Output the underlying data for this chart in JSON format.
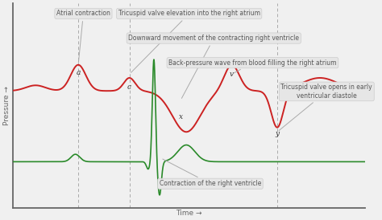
{
  "background_color": "#f0f0f0",
  "plot_bg_color": "#f0f0f0",
  "red_line_color": "#cc2222",
  "green_line_color": "#2a8a2a",
  "axis_color": "#666666",
  "dashed_line_color": "#aaaaaa",
  "annotation_box_color": "#e6e6e6",
  "annotation_box_edge": "#cccccc",
  "annotation_text_color": "#555555",
  "arrow_color": "#aaaaaa",
  "ylabel": "Pressure →",
  "xlabel": "Time →",
  "wave_labels": [
    {
      "text": "a",
      "xd": 1.45,
      "yd": 0.68
    },
    {
      "text": "c",
      "xd": 2.35,
      "yd": 0.6
    },
    {
      "text": "x",
      "xd": 3.25,
      "yd": 0.44
    },
    {
      "text": "v",
      "xd": 4.15,
      "yd": 0.67
    },
    {
      "text": "y",
      "xd": 4.95,
      "yd": 0.35
    }
  ],
  "vlines_xd": [
    1.45,
    2.35,
    4.95
  ],
  "xlim": [
    0.3,
    6.5
  ],
  "ylim": [
    -0.05,
    1.05
  ],
  "red_baseline": 0.58,
  "green_baseline": 0.2
}
